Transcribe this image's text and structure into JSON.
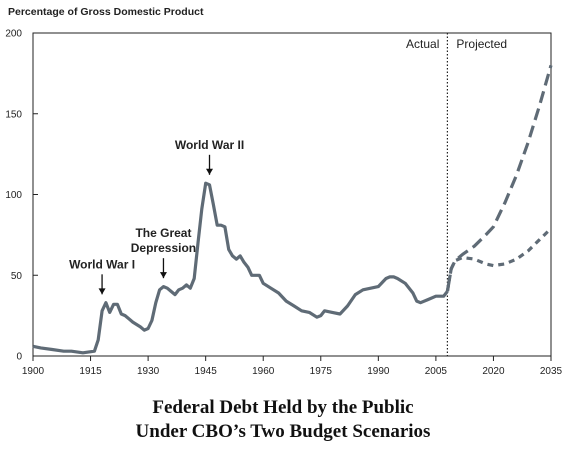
{
  "chart_data": {
    "type": "line",
    "title_line1": "Federal Debt Held by the Public",
    "title_line2": "Under CBO’s Two Budget Scenarios",
    "ylabel": "Percentage of Gross Domestic Product",
    "xlim": [
      1900,
      2035
    ],
    "ylim": [
      0,
      200
    ],
    "x_ticks": [
      1900,
      1915,
      1930,
      1945,
      1960,
      1975,
      1990,
      2005,
      2020,
      2035
    ],
    "y_ticks": [
      0,
      50,
      100,
      150,
      200
    ],
    "grid": false,
    "divider_year": 2008,
    "region_labels": {
      "actual": "Actual",
      "projected": "Projected"
    },
    "annotations": [
      {
        "lines": [
          "World War I"
        ],
        "x": 1918,
        "y": 32
      },
      {
        "lines": [
          "The Great",
          "Depression"
        ],
        "x": 1934,
        "y": 42
      },
      {
        "lines": [
          "World War II"
        ],
        "x": 1946,
        "y": 106
      }
    ],
    "colors": {
      "line": "#5f6b76",
      "axis": "#222222"
    },
    "series": [
      {
        "style": "solid",
        "x": [
          1900,
          1902,
          1905,
          1908,
          1910,
          1913,
          1916,
          1917,
          1918,
          1919,
          1920,
          1921,
          1922,
          1923,
          1924,
          1926,
          1928,
          1929,
          1930,
          1931,
          1932,
          1933,
          1934,
          1935,
          1936,
          1937,
          1938,
          1939,
          1940,
          1941,
          1942,
          1943,
          1944,
          1945,
          1946,
          1947,
          1948,
          1949,
          1950,
          1951,
          1952,
          1953,
          1954,
          1955,
          1956,
          1957,
          1958,
          1959,
          1960,
          1962,
          1964,
          1966,
          1968,
          1970,
          1972,
          1974,
          1975,
          1976,
          1978,
          1980,
          1982,
          1984,
          1986,
          1988,
          1990,
          1992,
          1993,
          1994,
          1995,
          1997,
          1999,
          2000,
          2001,
          2003,
          2005,
          2007,
          2008
        ],
        "y": [
          6,
          5,
          4,
          3,
          3,
          2,
          3,
          10,
          28,
          33,
          27,
          32,
          32,
          26,
          25,
          21,
          18,
          16,
          17,
          22,
          33,
          41,
          43,
          42,
          40,
          38,
          41,
          42,
          44,
          42,
          48,
          70,
          91,
          107,
          106,
          94,
          81,
          81,
          80,
          66,
          62,
          60,
          62,
          58,
          55,
          50,
          50,
          50,
          45,
          42,
          39,
          34,
          31,
          28,
          27,
          24,
          25,
          28,
          27,
          26,
          31,
          38,
          41,
          42,
          43,
          48,
          49,
          49,
          48,
          45,
          39,
          34,
          33,
          35,
          37,
          37,
          40
        ]
      },
      {
        "style": "dashed-long",
        "x": [
          2008,
          2009,
          2010,
          2012,
          2015,
          2018,
          2020,
          2023,
          2026,
          2029,
          2032,
          2035
        ],
        "y": [
          40,
          54,
          59,
          63,
          68,
          75,
          80,
          95,
          112,
          132,
          155,
          180
        ]
      },
      {
        "style": "dashed-short",
        "x": [
          2008,
          2009,
          2010,
          2012,
          2015,
          2018,
          2020,
          2023,
          2026,
          2029,
          2032,
          2035
        ],
        "y": [
          40,
          54,
          59,
          61,
          60,
          57,
          56,
          57,
          60,
          65,
          72,
          79
        ]
      }
    ]
  }
}
